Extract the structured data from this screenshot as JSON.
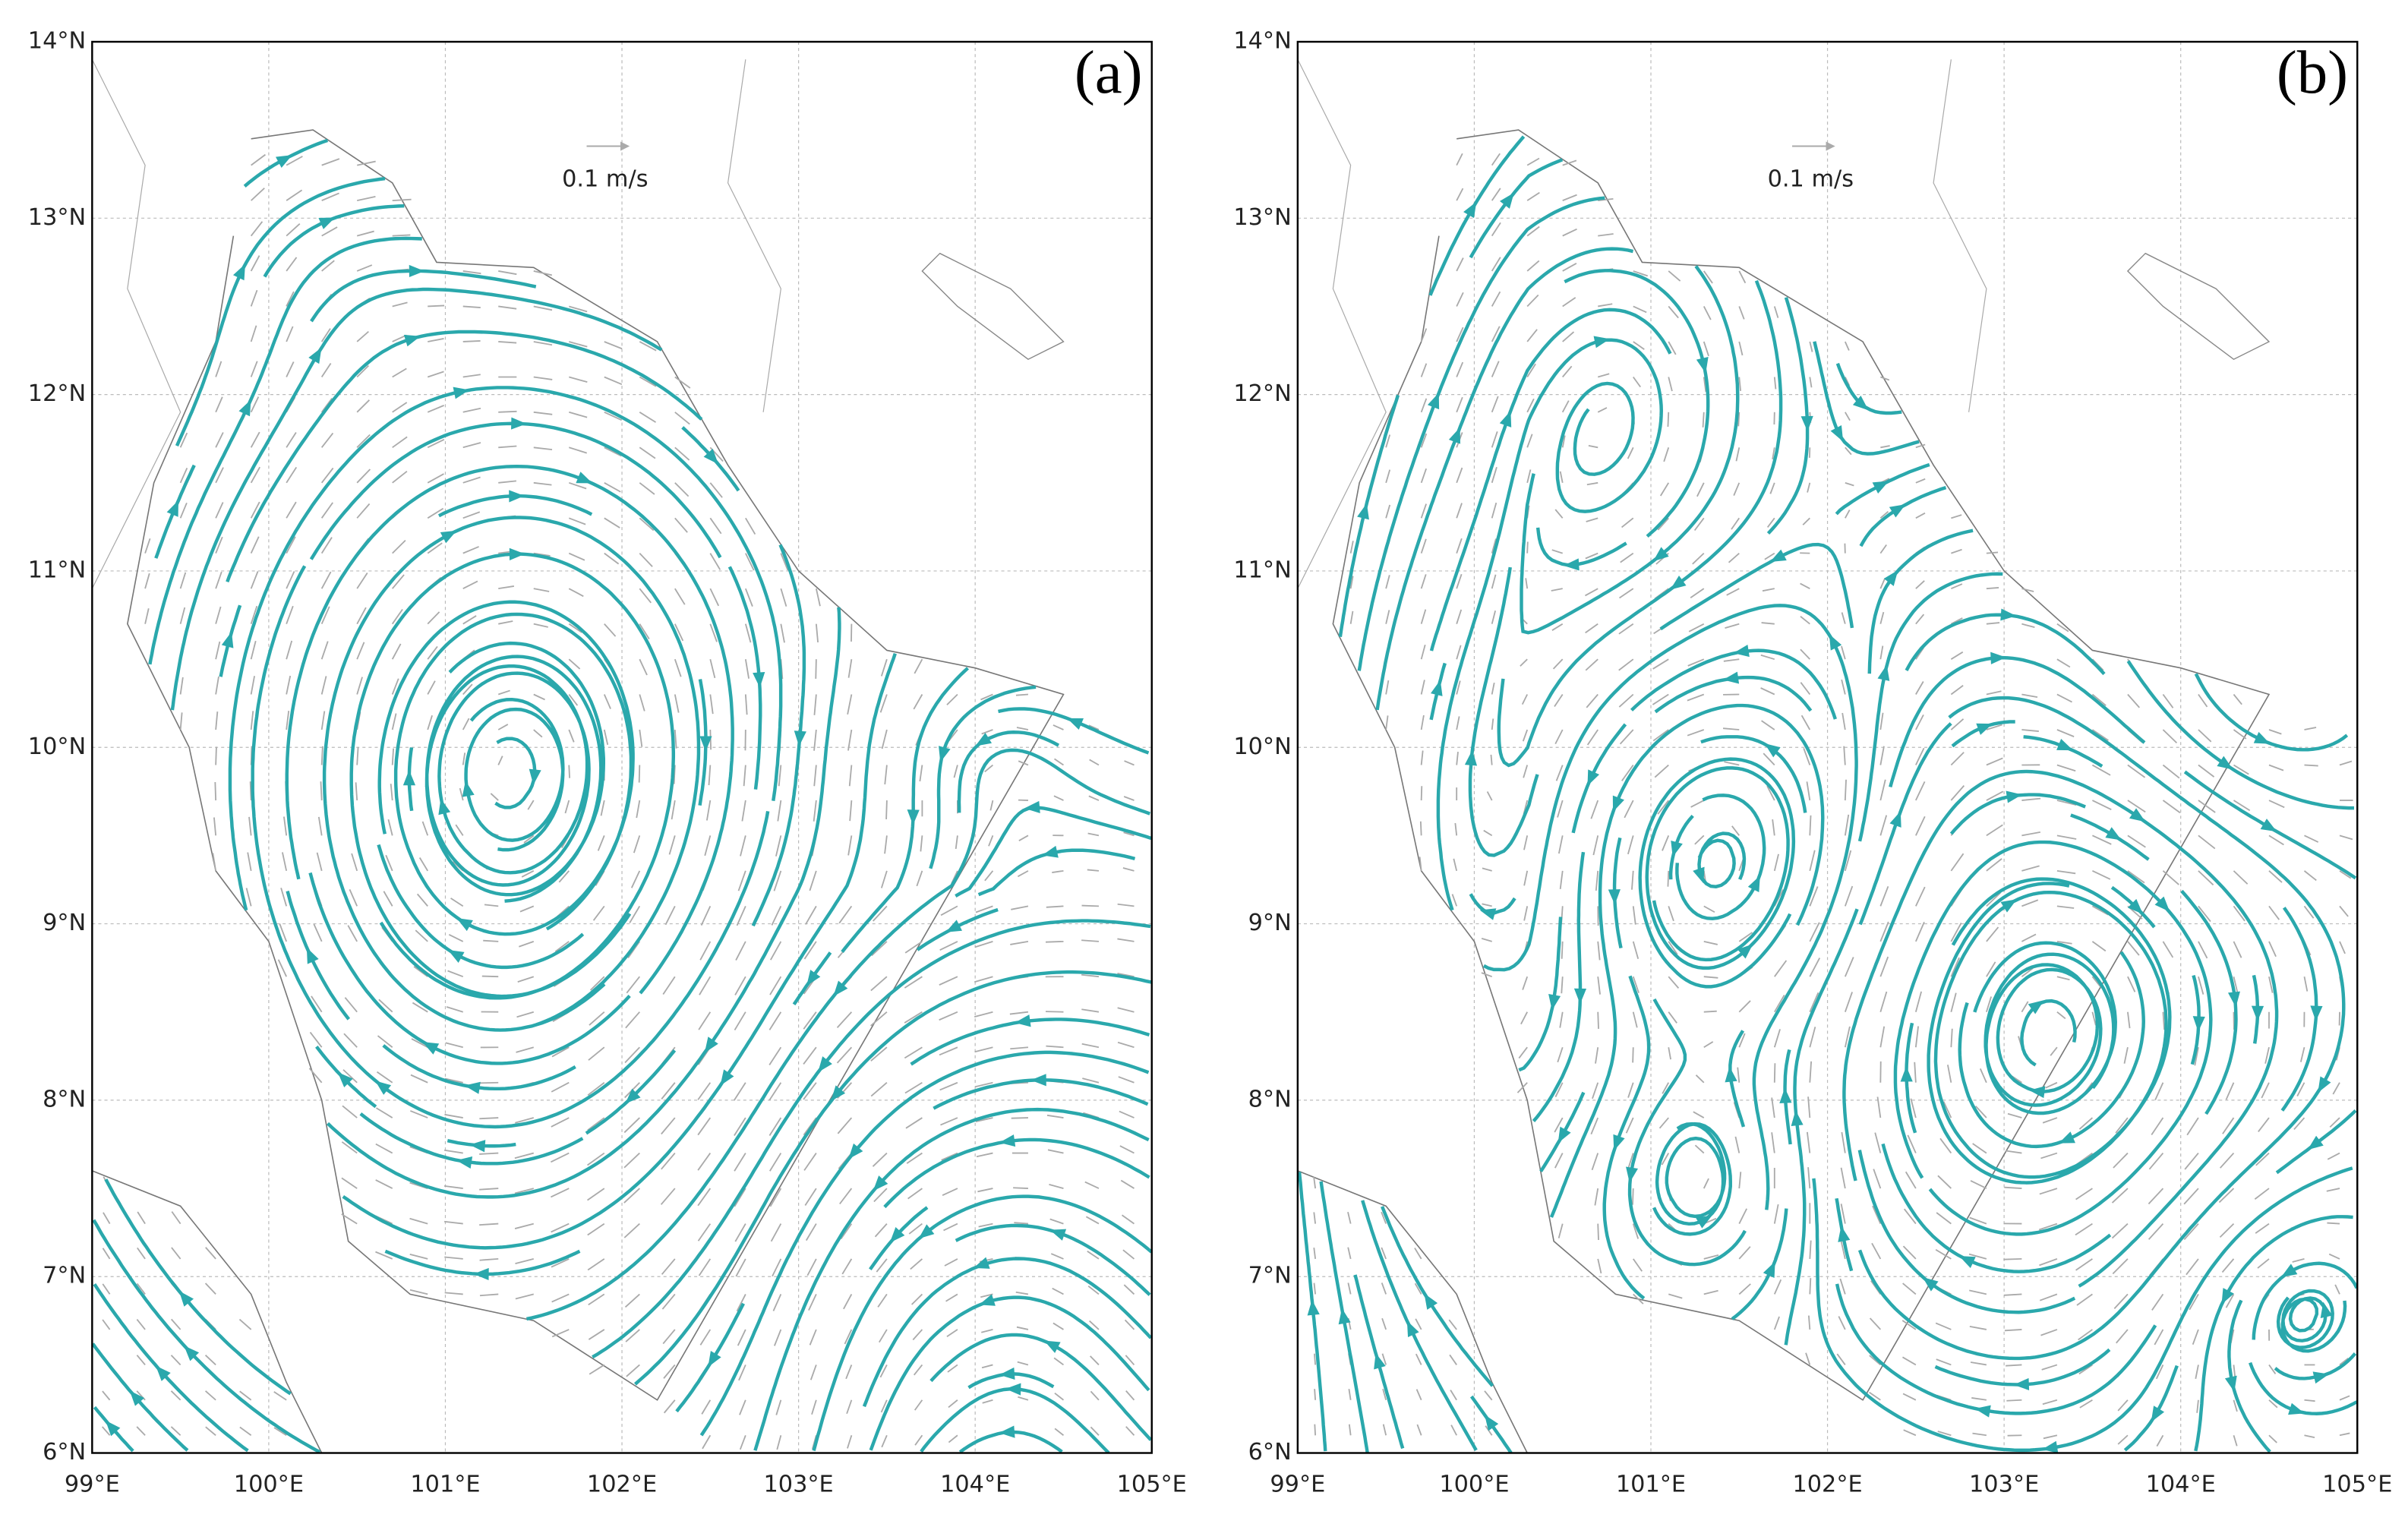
{
  "panels": [
    {
      "label": "(a)",
      "scale_label": "0.1 m/s"
    },
    {
      "label": "(b)",
      "scale_label": "0.1 m/s"
    }
  ],
  "axes": {
    "lon_labels": [
      "99°E",
      "100°E",
      "101°E",
      "102°E",
      "103°E",
      "104°E",
      "105°E"
    ],
    "lat_labels": [
      "6°N",
      "7°N",
      "8°N",
      "9°N",
      "10°N",
      "11°N",
      "12°N",
      "13°N",
      "14°N"
    ]
  }
}
